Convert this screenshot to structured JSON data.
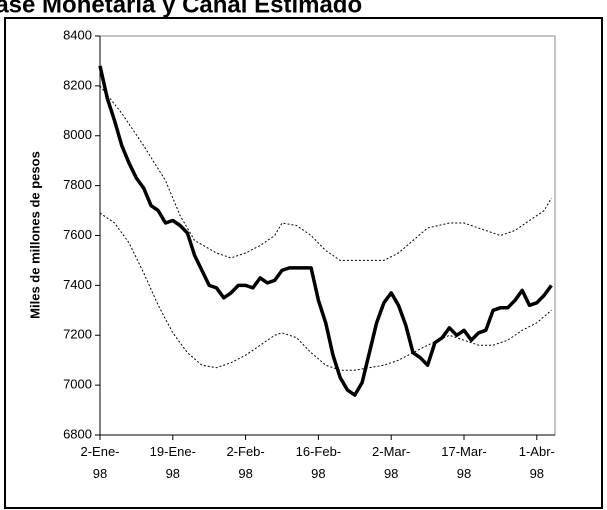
{
  "chart_data": {
    "type": "line",
    "title": "Base Monetaria y Canal Estimado",
    "ylabel": "Miles de millones de pesos",
    "xlim": [
      0,
      62.5
    ],
    "xticks": [
      {
        "value": 0,
        "label": "2-Ene-98"
      },
      {
        "value": 10,
        "label": "19-Ene-98"
      },
      {
        "value": 20,
        "label": "2-Feb-98"
      },
      {
        "value": 30,
        "label": "16-Feb-98"
      },
      {
        "value": 40,
        "label": "2-Mar-98"
      },
      {
        "value": 50,
        "label": "17-Mar-98"
      },
      {
        "value": 60,
        "label": "1-Abr-98"
      }
    ],
    "ylim": [
      6800,
      8400
    ],
    "yticks": [
      6800,
      7000,
      7200,
      7400,
      7600,
      7800,
      8000,
      8200,
      8400
    ],
    "grid": false,
    "series": [
      {
        "color": "#000000",
        "style": "solid",
        "x": [
          0,
          1,
          2,
          3,
          4,
          5,
          6,
          7,
          8,
          9,
          10,
          11,
          12,
          13,
          14,
          15,
          16,
          17,
          18,
          19,
          20,
          21,
          22,
          23,
          24,
          25,
          26,
          27,
          28,
          29,
          30,
          31,
          32,
          33,
          34,
          35,
          36,
          37,
          38,
          39,
          40,
          41,
          42,
          43,
          44,
          45,
          46,
          47,
          48,
          49,
          50,
          51,
          52,
          53,
          54,
          55,
          56,
          57,
          58,
          59,
          60,
          61,
          62
        ],
        "values": [
          8280,
          8150,
          8060,
          7960,
          7890,
          7830,
          7790,
          7720,
          7700,
          7650,
          7660,
          7640,
          7610,
          7520,
          7460,
          7400,
          7390,
          7350,
          7370,
          7400,
          7400,
          7390,
          7430,
          7410,
          7420,
          7460,
          7470,
          7470,
          7470,
          7470,
          7340,
          7250,
          7120,
          7030,
          6980,
          6960,
          7010,
          7130,
          7250,
          7330,
          7370,
          7320,
          7240,
          7130,
          7110,
          7080,
          7170,
          7190,
          7230,
          7200,
          7220,
          7180,
          7210,
          7220,
          7300,
          7310,
          7310,
          7340,
          7380,
          7320,
          7330,
          7360,
          7400
        ]
      },
      {
        "color": "#000000",
        "style": "dashed",
        "x": [
          0,
          3,
          6,
          9,
          11,
          13,
          16,
          18,
          20,
          22,
          24,
          25,
          27,
          29,
          31,
          33,
          36,
          39,
          41,
          43,
          45,
          48,
          50,
          53,
          55,
          57,
          59,
          61,
          62
        ],
        "values": [
          8200,
          8090,
          7960,
          7820,
          7680,
          7580,
          7530,
          7510,
          7530,
          7560,
          7600,
          7650,
          7640,
          7600,
          7540,
          7500,
          7500,
          7500,
          7530,
          7580,
          7630,
          7650,
          7650,
          7620,
          7600,
          7620,
          7660,
          7700,
          7750
        ]
      },
      {
        "color": "#000000",
        "style": "dashed",
        "x": [
          0,
          2,
          4,
          6,
          8,
          10,
          12,
          14,
          16,
          18,
          20,
          22,
          24,
          25,
          27,
          29,
          31,
          33,
          35,
          37,
          39,
          41,
          43,
          45,
          48,
          50,
          52,
          54,
          56,
          58,
          60,
          62
        ],
        "values": [
          7690,
          7650,
          7570,
          7450,
          7320,
          7210,
          7130,
          7080,
          7070,
          7090,
          7120,
          7160,
          7200,
          7210,
          7190,
          7130,
          7080,
          7060,
          7060,
          7070,
          7080,
          7100,
          7130,
          7160,
          7200,
          7180,
          7160,
          7160,
          7180,
          7220,
          7250,
          7300
        ]
      }
    ]
  }
}
